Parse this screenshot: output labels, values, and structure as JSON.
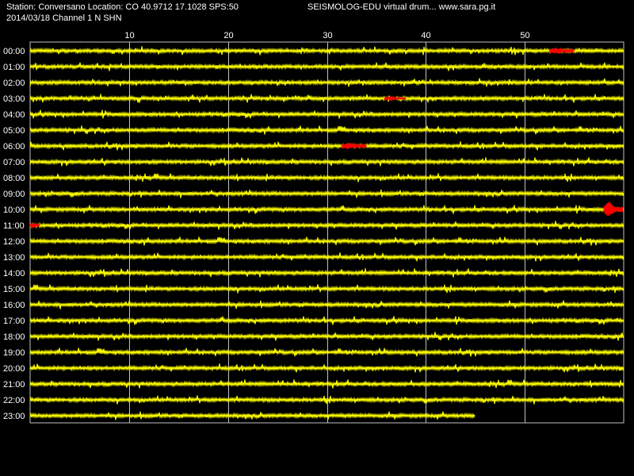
{
  "header": {
    "station_line": "Station: Conversano Location: CO 40.9712 17.1028 SPS:50",
    "date_line": "2014/03/18  Channel 1 N SHN",
    "right_line": "SEISMOLOG-EDU virtual drum... www.sara.pg.it"
  },
  "chart_data": {
    "type": "line",
    "title": "",
    "xlabel": "",
    "ylabel": "",
    "x_unit_note": "",
    "xlim": [
      0,
      60
    ],
    "x_ticks": [
      "10",
      "20",
      "30",
      "40",
      "50"
    ],
    "x_tick_values": [
      10,
      20,
      30,
      40,
      50
    ],
    "grid": true,
    "rows": [
      "00:00",
      "01:00",
      "02:00",
      "03:00",
      "04:00",
      "05:00",
      "06:00",
      "07:00",
      "08:00",
      "09:00",
      "10:00",
      "11:00",
      "12:00",
      "13:00",
      "14:00",
      "15:00",
      "16:00",
      "17:00",
      "18:00",
      "19:00",
      "20:00",
      "21:00",
      "22:00",
      "23:00"
    ],
    "last_row_end_minute": 45,
    "events": [
      {
        "row": "00:00",
        "start_min": 52.5,
        "end_min": 55.0,
        "amplitude": 4
      },
      {
        "row": "03:00",
        "start_min": 35.8,
        "end_min": 38.0,
        "amplitude": 2
      },
      {
        "row": "06:00",
        "start_min": 31.5,
        "end_min": 34.0,
        "amplitude": 4
      },
      {
        "row": "10:00",
        "start_min": 58.0,
        "end_min": 60.0,
        "amplitude": 10
      },
      {
        "row": "11:00",
        "start_min": 0.0,
        "end_min": 1.0,
        "amplitude": 3
      }
    ],
    "trace_color": "#ffff00",
    "event_color": "#ff0000",
    "grid_color": "#c0c0c0",
    "background": "#000000"
  }
}
